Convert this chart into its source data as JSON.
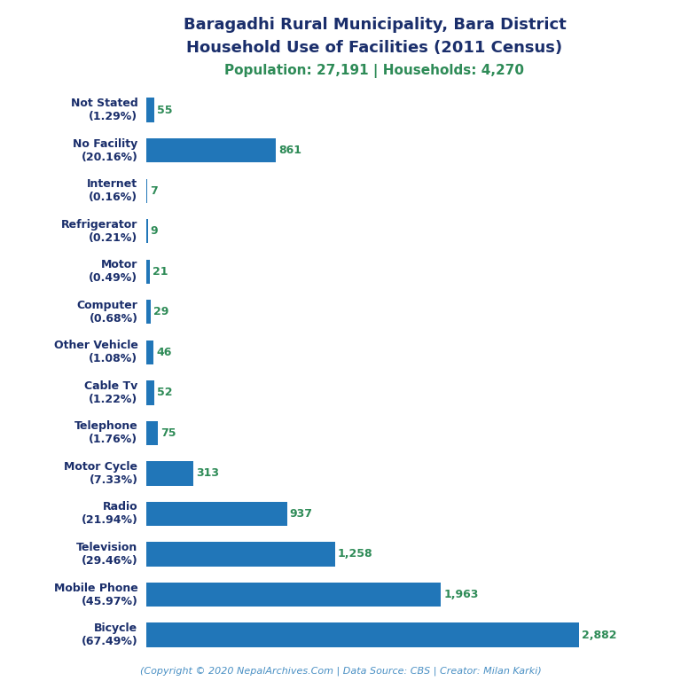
{
  "title_line1": "Baragadhi Rural Municipality, Bara District",
  "title_line2": "Household Use of Facilities (2011 Census)",
  "subtitle": "Population: 27,191 | Households: 4,270",
  "footer": "(Copyright © 2020 NepalArchives.Com | Data Source: CBS | Creator: Milan Karki)",
  "categories": [
    "Not Stated\n(1.29%)",
    "No Facility\n(20.16%)",
    "Internet\n(0.16%)",
    "Refrigerator\n(0.21%)",
    "Motor\n(0.49%)",
    "Computer\n(0.68%)",
    "Other Vehicle\n(1.08%)",
    "Cable Tv\n(1.22%)",
    "Telephone\n(1.76%)",
    "Motor Cycle\n(7.33%)",
    "Radio\n(21.94%)",
    "Television\n(29.46%)",
    "Mobile Phone\n(45.97%)",
    "Bicycle\n(67.49%)"
  ],
  "values": [
    55,
    861,
    7,
    9,
    21,
    29,
    46,
    52,
    75,
    313,
    937,
    1258,
    1963,
    2882
  ],
  "bar_color": "#2176b8",
  "title_color": "#1a2e6b",
  "subtitle_color": "#2e8b57",
  "value_color": "#2e8b57",
  "footer_color": "#4a90c4",
  "background_color": "#ffffff",
  "xlim": [
    0,
    3200
  ]
}
